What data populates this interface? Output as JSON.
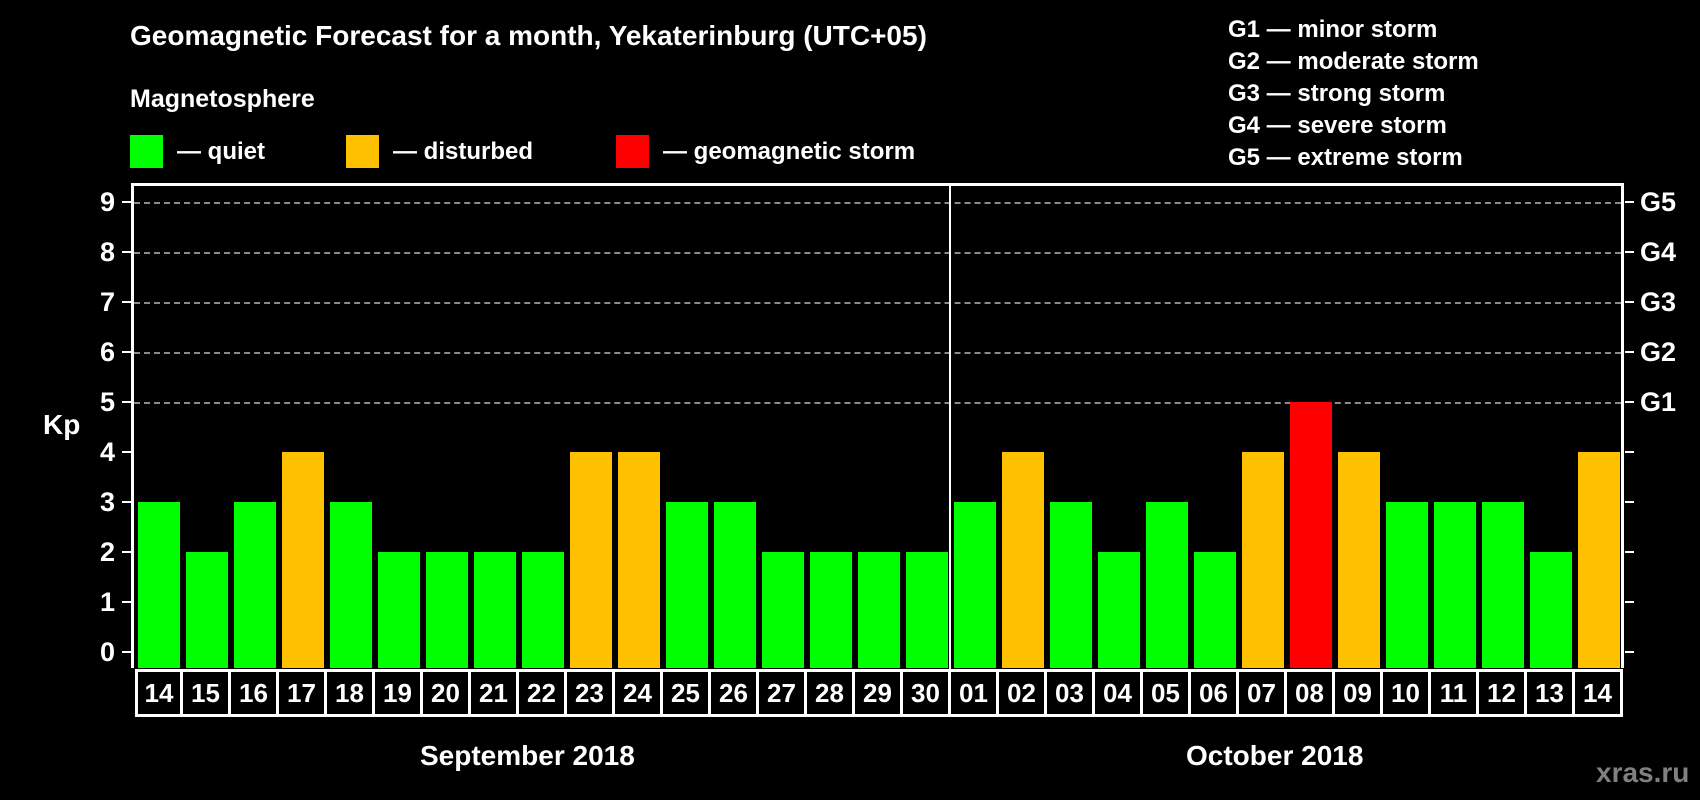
{
  "header": {
    "title": "Geomagnetic Forecast for a month, Yekaterinburg (UTC+05)",
    "subtitle": "Magnetosphere"
  },
  "legend": [
    {
      "label": "— quiet",
      "color": "#00FF00"
    },
    {
      "label": "— disturbed",
      "color": "#FFC000"
    },
    {
      "label": "— geomagnetic storm",
      "color": "#FF0000"
    }
  ],
  "g_scale": [
    "G1 — minor storm",
    "G2 — moderate storm",
    "G3 — strong storm",
    "G4 — severe storm",
    "G5 — extreme storm"
  ],
  "axis": {
    "ylabel": "Kp",
    "yticks": [
      "0",
      "1",
      "2",
      "3",
      "4",
      "5",
      "6",
      "7",
      "8",
      "9"
    ],
    "right_labels": {
      "5": "G1",
      "6": "G2",
      "7": "G3",
      "8": "G4",
      "9": "G5"
    }
  },
  "months": [
    "September 2018",
    "October 2018"
  ],
  "watermark": "xras.ru",
  "chart_data": {
    "type": "bar",
    "title": "Geomagnetic Forecast for a month, Yekaterinburg (UTC+05)",
    "subtitle": "Magnetosphere",
    "xlabel": "",
    "ylabel": "Kp",
    "ylim": [
      0,
      9
    ],
    "grid": "dashed horizontal lines at Kp 5–9",
    "legend_position": "top",
    "legend": [
      {
        "label": "quiet",
        "color": "#00FF00"
      },
      {
        "label": "disturbed",
        "color": "#FFC000"
      },
      {
        "label": "geomagnetic storm",
        "color": "#FF0000"
      }
    ],
    "secondary_axis": {
      "5": "G1",
      "6": "G2",
      "7": "G3",
      "8": "G4",
      "9": "G5"
    },
    "month_groups": [
      {
        "label": "September 2018",
        "start_index": 0,
        "count": 17
      },
      {
        "label": "October 2018",
        "start_index": 17,
        "count": 14
      }
    ],
    "categories": [
      "14",
      "15",
      "16",
      "17",
      "18",
      "19",
      "20",
      "21",
      "22",
      "23",
      "24",
      "25",
      "26",
      "27",
      "28",
      "29",
      "30",
      "01",
      "02",
      "03",
      "04",
      "05",
      "06",
      "07",
      "08",
      "09",
      "10",
      "11",
      "12",
      "13",
      "14"
    ],
    "values": [
      3,
      2,
      3,
      4,
      3,
      2,
      2,
      2,
      2,
      4,
      4,
      3,
      3,
      2,
      2,
      2,
      2,
      3,
      4,
      3,
      2,
      3,
      2,
      4,
      5,
      4,
      3,
      3,
      3,
      2,
      4
    ],
    "status": [
      "quiet",
      "quiet",
      "quiet",
      "disturbed",
      "quiet",
      "quiet",
      "quiet",
      "quiet",
      "quiet",
      "disturbed",
      "disturbed",
      "quiet",
      "quiet",
      "quiet",
      "quiet",
      "quiet",
      "quiet",
      "quiet",
      "disturbed",
      "quiet",
      "quiet",
      "quiet",
      "quiet",
      "disturbed",
      "storm",
      "disturbed",
      "quiet",
      "quiet",
      "quiet",
      "quiet",
      "disturbed"
    ]
  }
}
